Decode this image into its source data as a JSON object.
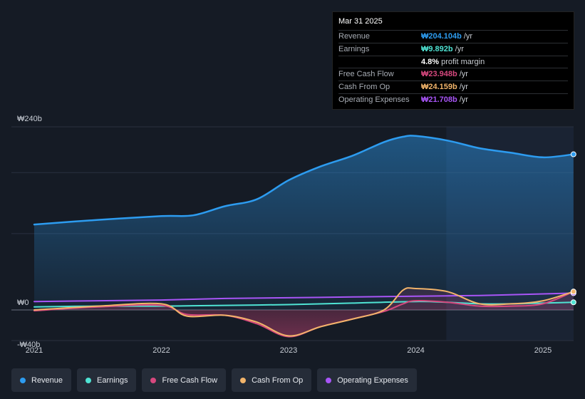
{
  "chart_data": {
    "type": "area",
    "currency": "₩",
    "y_axis_labels": [
      "₩240b",
      "₩0",
      "-₩40b"
    ],
    "y_axis_values": [
      240,
      0,
      -40
    ],
    "ylim": [
      -40,
      240
    ],
    "x_tick_labels": [
      "2021",
      "2022",
      "2023",
      "2024",
      "2025"
    ],
    "x_tick_values": [
      2021,
      2022,
      2023,
      2024,
      2025
    ],
    "xlim": [
      2020.85,
      2025.24
    ],
    "past_region_start": 2024.24,
    "series": [
      {
        "name": "Revenue",
        "color": "#2d9cf0",
        "points": [
          [
            2021.0,
            112
          ],
          [
            2021.5,
            118
          ],
          [
            2022.0,
            123
          ],
          [
            2022.25,
            124
          ],
          [
            2022.5,
            136
          ],
          [
            2022.75,
            145
          ],
          [
            2023.0,
            170
          ],
          [
            2023.25,
            188
          ],
          [
            2023.5,
            202
          ],
          [
            2023.75,
            220
          ],
          [
            2023.9,
            227
          ],
          [
            2024.0,
            228
          ],
          [
            2024.25,
            222
          ],
          [
            2024.5,
            212
          ],
          [
            2024.75,
            206
          ],
          [
            2025.0,
            200
          ],
          [
            2025.24,
            204
          ]
        ]
      },
      {
        "name": "Earnings",
        "color": "#4fe3d3",
        "points": [
          [
            2021.0,
            4
          ],
          [
            2021.5,
            5
          ],
          [
            2022.0,
            5
          ],
          [
            2022.5,
            6
          ],
          [
            2023.0,
            7
          ],
          [
            2023.5,
            9
          ],
          [
            2024.0,
            11
          ],
          [
            2024.25,
            10
          ],
          [
            2024.5,
            8
          ],
          [
            2024.75,
            8
          ],
          [
            2025.0,
            9
          ],
          [
            2025.24,
            10
          ]
        ]
      },
      {
        "name": "Free Cash Flow",
        "color": "#d6487e",
        "points": [
          [
            2021.0,
            -1
          ],
          [
            2021.5,
            4
          ],
          [
            2022.0,
            6
          ],
          [
            2022.2,
            -6
          ],
          [
            2022.5,
            -7
          ],
          [
            2022.75,
            -18
          ],
          [
            2023.0,
            -35
          ],
          [
            2023.25,
            -22
          ],
          [
            2023.5,
            -12
          ],
          [
            2023.75,
            -2
          ],
          [
            2023.9,
            8
          ],
          [
            2024.0,
            12
          ],
          [
            2024.25,
            10
          ],
          [
            2024.5,
            5
          ],
          [
            2024.75,
            5
          ],
          [
            2025.0,
            8
          ],
          [
            2025.24,
            24
          ]
        ]
      },
      {
        "name": "Cash From Op",
        "color": "#f2b46a",
        "points": [
          [
            2021.0,
            0
          ],
          [
            2021.5,
            5
          ],
          [
            2022.0,
            8
          ],
          [
            2022.2,
            -8
          ],
          [
            2022.5,
            -7
          ],
          [
            2022.75,
            -16
          ],
          [
            2023.0,
            -34
          ],
          [
            2023.25,
            -22
          ],
          [
            2023.5,
            -12
          ],
          [
            2023.75,
            0
          ],
          [
            2023.9,
            26
          ],
          [
            2024.0,
            28
          ],
          [
            2024.25,
            24
          ],
          [
            2024.5,
            8
          ],
          [
            2024.75,
            8
          ],
          [
            2025.0,
            12
          ],
          [
            2025.24,
            24
          ]
        ]
      },
      {
        "name": "Operating Expenses",
        "color": "#a855f7",
        "points": [
          [
            2021.0,
            11
          ],
          [
            2021.5,
            12
          ],
          [
            2022.0,
            13
          ],
          [
            2022.5,
            15
          ],
          [
            2023.0,
            16
          ],
          [
            2023.5,
            17
          ],
          [
            2024.0,
            18
          ],
          [
            2024.5,
            19
          ],
          [
            2025.0,
            21
          ],
          [
            2025.24,
            22
          ]
        ]
      }
    ]
  },
  "tooltip": {
    "date": "Mar 31 2025",
    "rows": [
      {
        "label": "Revenue",
        "value": "₩204.104b",
        "unit": "/yr",
        "color": "#2d9cf0"
      },
      {
        "label": "Earnings",
        "value": "₩9.892b",
        "unit": "/yr",
        "color": "#4fe3d3"
      },
      {
        "label": "",
        "value": "4.8%",
        "unit": "profit margin",
        "color": "#ffffff"
      },
      {
        "label": "Free Cash Flow",
        "value": "₩23.948b",
        "unit": "/yr",
        "color": "#d6487e"
      },
      {
        "label": "Cash From Op",
        "value": "₩24.159b",
        "unit": "/yr",
        "color": "#f2b46a"
      },
      {
        "label": "Operating Expenses",
        "value": "₩21.708b",
        "unit": "/yr",
        "color": "#a855f7"
      }
    ]
  },
  "legend": [
    {
      "label": "Revenue",
      "color": "#2d9cf0"
    },
    {
      "label": "Earnings",
      "color": "#4fe3d3"
    },
    {
      "label": "Free Cash Flow",
      "color": "#d6487e"
    },
    {
      "label": "Cash From Op",
      "color": "#f2b46a"
    },
    {
      "label": "Operating Expenses",
      "color": "#a855f7"
    }
  ]
}
